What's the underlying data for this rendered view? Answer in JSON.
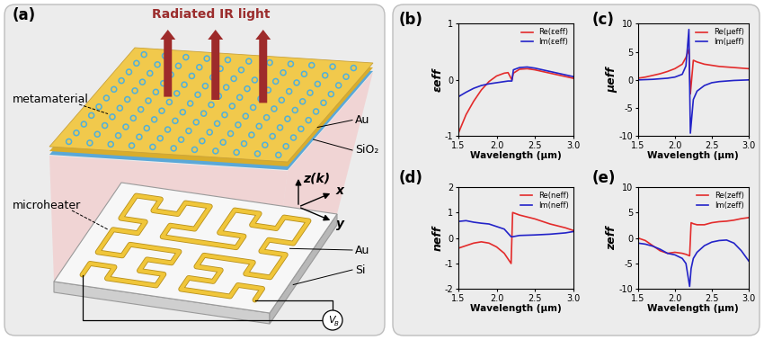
{
  "panel_a": {
    "panel_label": "(a)",
    "emission": "Radiated IR light",
    "top_device": {
      "name": "metamaterial",
      "layers": [
        "Au",
        "SiO₂"
      ]
    },
    "bottom_device": {
      "name": "microheater",
      "layers": [
        "Au",
        "Si"
      ]
    },
    "coordinate_axes": {
      "z": "z(k)",
      "x": "x",
      "y": "y"
    },
    "voltage": {
      "symbol": "V",
      "subscript": "B"
    }
  },
  "chart_data": [
    {
      "type": "line",
      "panel_label": "(b)",
      "xlabel": "Wavelength (μm)",
      "ylabel": "εeff",
      "x": [
        1.5,
        1.6,
        1.7,
        1.8,
        1.9,
        2.0,
        2.1,
        2.15,
        2.2,
        2.22,
        2.3,
        2.4,
        2.5,
        2.6,
        2.7,
        2.8,
        2.9,
        3.0
      ],
      "series": [
        {
          "name": "Re(εeff)",
          "color": "#e32b2b",
          "values": [
            -0.95,
            -0.62,
            -0.38,
            -0.18,
            -0.03,
            0.07,
            0.12,
            0.13,
            0.0,
            0.12,
            0.19,
            0.2,
            0.18,
            0.15,
            0.12,
            0.09,
            0.06,
            0.03
          ]
        },
        {
          "name": "Im(εeff)",
          "color": "#2323c8",
          "values": [
            -0.3,
            -0.22,
            -0.15,
            -0.1,
            -0.07,
            -0.05,
            -0.03,
            -0.02,
            -0.02,
            0.18,
            0.22,
            0.23,
            0.21,
            0.18,
            0.15,
            0.12,
            0.09,
            0.06
          ]
        }
      ],
      "xlim": [
        1.5,
        3.0
      ],
      "xticks": [
        1.5,
        2.0,
        2.5,
        3.0
      ],
      "ylim": [
        -1,
        1
      ],
      "yticks": [
        -1,
        0,
        1
      ],
      "legend": "upper right"
    },
    {
      "type": "line",
      "panel_label": "(c)",
      "xlabel": "Wavelength (μm)",
      "ylabel": "μeff",
      "x": [
        1.5,
        1.6,
        1.7,
        1.8,
        1.9,
        2.0,
        2.1,
        2.15,
        2.19,
        2.21,
        2.25,
        2.3,
        2.4,
        2.5,
        2.6,
        2.8,
        3.0
      ],
      "series": [
        {
          "name": "Re(μeff)",
          "color": "#e32b2b",
          "values": [
            0.3,
            0.5,
            0.8,
            1.1,
            1.5,
            2.0,
            2.8,
            4.0,
            5.5,
            -2.5,
            3.5,
            3.2,
            2.8,
            2.6,
            2.4,
            2.2,
            2.0
          ]
        },
        {
          "name": "Im(μeff)",
          "color": "#2323c8",
          "values": [
            0.0,
            0.05,
            0.1,
            0.2,
            0.3,
            0.5,
            1.0,
            2.5,
            9.0,
            -9.5,
            -3.5,
            -2.0,
            -1.0,
            -0.5,
            -0.3,
            -0.1,
            0.0
          ]
        }
      ],
      "xlim": [
        1.5,
        3.0
      ],
      "xticks": [
        1.5,
        2.0,
        2.5,
        3.0
      ],
      "ylim": [
        -10,
        10
      ],
      "yticks": [
        -10,
        -5,
        0,
        5,
        10
      ],
      "legend": "upper right"
    },
    {
      "type": "line",
      "panel_label": "(d)",
      "xlabel": "Wavelength (μm)",
      "ylabel": "neff",
      "x": [
        1.5,
        1.6,
        1.7,
        1.8,
        1.9,
        2.0,
        2.1,
        2.19,
        2.21,
        2.3,
        2.5,
        2.7,
        2.9,
        3.0
      ],
      "series": [
        {
          "name": "Re(neff)",
          "color": "#e32b2b",
          "values": [
            -0.4,
            -0.3,
            -0.2,
            -0.15,
            -0.2,
            -0.35,
            -0.6,
            -1.0,
            1.0,
            0.9,
            0.75,
            0.55,
            0.4,
            0.3
          ]
        },
        {
          "name": "Im(neff)",
          "color": "#2323c8",
          "values": [
            0.65,
            0.68,
            0.62,
            0.58,
            0.55,
            0.45,
            0.35,
            0.05,
            0.05,
            0.1,
            0.12,
            0.15,
            0.2,
            0.25
          ]
        }
      ],
      "xlim": [
        1.5,
        3.0
      ],
      "xticks": [
        1.5,
        2.0,
        2.5,
        3.0
      ],
      "ylim": [
        -2,
        2
      ],
      "yticks": [
        -2,
        -1,
        0,
        1,
        2
      ],
      "legend": "upper right"
    },
    {
      "type": "line",
      "panel_label": "(e)",
      "xlabel": "Wavelength (μm)",
      "ylabel": "zeff",
      "x": [
        1.5,
        1.6,
        1.7,
        1.8,
        1.9,
        2.0,
        2.1,
        2.15,
        2.2,
        2.22,
        2.25,
        2.3,
        2.4,
        2.5,
        2.6,
        2.7,
        2.8,
        2.9,
        3.0
      ],
      "series": [
        {
          "name": "Re(zeff)",
          "color": "#e32b2b",
          "values": [
            0.0,
            -0.5,
            -1.5,
            -2.5,
            -3.0,
            -2.8,
            -3.0,
            -3.2,
            -3.5,
            3.0,
            2.8,
            2.6,
            2.6,
            3.0,
            3.2,
            3.3,
            3.5,
            3.8,
            4.0
          ]
        },
        {
          "name": "Im(zeff)",
          "color": "#2323c8",
          "values": [
            -1.0,
            -1.2,
            -1.6,
            -2.2,
            -3.0,
            -3.3,
            -4.0,
            -5.0,
            -9.5,
            -6.0,
            -4.0,
            -2.8,
            -1.5,
            -0.8,
            -0.5,
            -0.4,
            -1.0,
            -2.5,
            -4.5
          ]
        }
      ],
      "xlim": [
        1.5,
        3.0
      ],
      "xticks": [
        1.5,
        2.0,
        2.5,
        3.0
      ],
      "ylim": [
        -10,
        10
      ],
      "yticks": [
        -10,
        -5,
        0,
        5,
        10
      ],
      "legend": "upper right"
    }
  ]
}
